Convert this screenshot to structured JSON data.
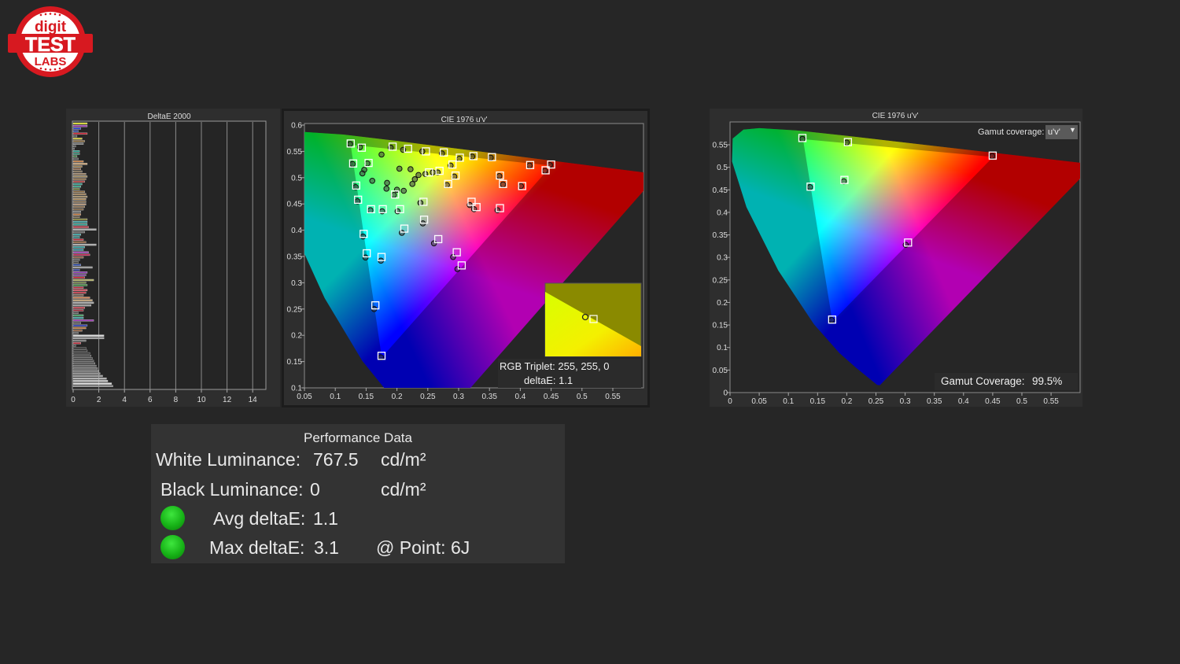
{
  "logo": {
    "line1": "digit",
    "line2": "TEST",
    "line3": "LABS"
  },
  "colors": {
    "background": "#262626",
    "panel": "#2e2e2e",
    "status_good": "#19b419",
    "logo_red": "#d71920"
  },
  "chart_data": [
    {
      "type": "bar",
      "orientation": "horizontal",
      "title": "DeltaE 2000",
      "xlim": [
        0,
        15
      ],
      "xticks": [
        "0",
        "2",
        "4",
        "6",
        "8",
        "10",
        "12",
        "14"
      ],
      "grid": true,
      "values": [
        1.1,
        1.1,
        0.6,
        0.4,
        1.1,
        0.3,
        0.7,
        0.9,
        0.8,
        0.2,
        0.1,
        0.5,
        0.5,
        0.3,
        0.4,
        0.8,
        1.1,
        0.7,
        0.6,
        0.7,
        1.0,
        1.1,
        1.0,
        0.9,
        0.7,
        0.6,
        0.5,
        0.9,
        1.0,
        1.1,
        1.0,
        1.0,
        1.0,
        0.9,
        0.8,
        0.6,
        0.6,
        0.5,
        1.1,
        1.1,
        1.1,
        1.2,
        1.8,
        0.9,
        0.6,
        0.5,
        0.8,
        1.0,
        1.8,
        0.9,
        0.8,
        1.2,
        1.3,
        0.8,
        0.5,
        0.4,
        0.6,
        1.5,
        0.5,
        1.1,
        1.0,
        0.9,
        1.6,
        1.0,
        1.1,
        0.8,
        1.1,
        1.0,
        0.8,
        1.3,
        1.5,
        1.6,
        1.4,
        0.9,
        0.8,
        0.4,
        0.8,
        0.8,
        1.6,
        0.6,
        1.1,
        1.0,
        0.7,
        0.4,
        2.4,
        2.4,
        1.0,
        0.6,
        0.2,
        1.0,
        1.1,
        1.3,
        1.4,
        1.5,
        1.6,
        1.7,
        1.8,
        1.9,
        2.0,
        2.1,
        2.3,
        2.6,
        2.7,
        3.0,
        3.1
      ],
      "bar_colors": [
        "#d8d820",
        "#9a3bb0",
        "#2a3ad0",
        "#2040a0",
        "#c02030",
        "#555",
        "#c8c030",
        "#8a6a3a",
        "#777",
        "#555",
        "#444",
        "#2aa090",
        "#2a8a70",
        "#3a7a3a",
        "#555",
        "#c07a40",
        "#c8a070",
        "#a08050",
        "#8a6040",
        "#7a6a50",
        "#9a8060",
        "#a08a60",
        "#8a6a40",
        "#b04040",
        "#30a090",
        "#30a080",
        "#6a7a30",
        "#8a6a40",
        "#9a7a50",
        "#a08860",
        "#b09060",
        "#8a7050",
        "#b09070",
        "#8a7050",
        "#7a6040",
        "#777",
        "#c07a40",
        "#6a5a40",
        "#7a7a30",
        "#30a0a0",
        "#30a090",
        "#c03040",
        "#aaa",
        "#666",
        "#30a0a0",
        "#2a8a8a",
        "#c03040",
        "#8a5a30",
        "#aaa",
        "#30a0a0",
        "#2a8a9a",
        "#9a3ab0",
        "#c02050",
        "#8a5a40",
        "#555",
        "#444",
        "#2a4ab0",
        "#999",
        "#2a3aa0",
        "#8a3ab0",
        "#7a3aa0",
        "#c02030",
        "#b0b060",
        "#6a7a40",
        "#3a8a3a",
        "#c03040",
        "#d04050",
        "#c03040",
        "#7a6050",
        "#d08050",
        "#c0a070",
        "#aaa",
        "#999",
        "#c03040",
        "#a03040",
        "#555",
        "#3a9a5a",
        "#30a0a0",
        "#9a3ab0",
        "#555",
        "#2a3ab0",
        "#c07a40",
        "#8a5a3a",
        "#555",
        "#ddd",
        "#999",
        "#777",
        "#c03040",
        "#444",
        "#222",
        "#2a2a2a",
        "#333",
        "#3a3a3a",
        "#444",
        "#4a4a4a",
        "#555",
        "#666",
        "#6e6e6e",
        "#7a7a7a",
        "#8a8a8a",
        "#9a9a9a",
        "#b0b0b0",
        "#c8c8c8",
        "#e0e0e0"
      ]
    },
    {
      "type": "scatter",
      "title": "CIE 1976 u'v'",
      "xlim": [
        0.05,
        0.6
      ],
      "ylim": [
        0.1,
        0.6
      ],
      "xticks": [
        "0.05",
        "0.1",
        "0.15",
        "0.2",
        "0.25",
        "0.3",
        "0.35",
        "0.4",
        "0.45",
        "0.5",
        "0.55"
      ],
      "yticks": [
        "0.1",
        "0.15",
        "0.2",
        "0.25",
        "0.3",
        "0.35",
        "0.4",
        "0.45",
        "0.5",
        "0.55",
        "0.6"
      ],
      "reference_gamut": {
        "red": [
          0.4507,
          0.5229
        ],
        "green": [
          0.125,
          0.5625
        ],
        "blue": [
          0.1754,
          0.1579
        ]
      },
      "targets": [
        [
          0.125,
          0.565
        ],
        [
          0.143,
          0.557
        ],
        [
          0.129,
          0.527
        ],
        [
          0.154,
          0.528
        ],
        [
          0.134,
          0.485
        ],
        [
          0.137,
          0.458
        ],
        [
          0.158,
          0.44
        ],
        [
          0.177,
          0.44
        ],
        [
          0.205,
          0.44
        ],
        [
          0.146,
          0.393
        ],
        [
          0.151,
          0.356
        ],
        [
          0.175,
          0.349
        ],
        [
          0.165,
          0.257
        ],
        [
          0.175,
          0.161
        ],
        [
          0.212,
          0.403
        ],
        [
          0.244,
          0.42
        ],
        [
          0.267,
          0.383
        ],
        [
          0.297,
          0.358
        ],
        [
          0.305,
          0.333
        ],
        [
          0.243,
          0.454
        ],
        [
          0.321,
          0.454
        ],
        [
          0.329,
          0.444
        ],
        [
          0.367,
          0.442
        ],
        [
          0.403,
          0.484
        ],
        [
          0.367,
          0.504
        ],
        [
          0.372,
          0.488
        ],
        [
          0.295,
          0.504
        ],
        [
          0.283,
          0.488
        ],
        [
          0.416,
          0.524
        ],
        [
          0.45,
          0.525
        ],
        [
          0.441,
          0.514
        ],
        [
          0.354,
          0.539
        ],
        [
          0.324,
          0.541
        ],
        [
          0.302,
          0.538
        ],
        [
          0.276,
          0.548
        ],
        [
          0.247,
          0.55
        ],
        [
          0.218,
          0.555
        ],
        [
          0.193,
          0.559
        ],
        [
          0.29,
          0.525
        ],
        [
          0.269,
          0.513
        ],
        [
          0.252,
          0.51
        ],
        [
          0.197,
          0.468
        ]
      ],
      "measured": [
        [
          0.124,
          0.564
        ],
        [
          0.14,
          0.558
        ],
        [
          0.128,
          0.526
        ],
        [
          0.152,
          0.527
        ],
        [
          0.133,
          0.482
        ],
        [
          0.136,
          0.455
        ],
        [
          0.157,
          0.438
        ],
        [
          0.176,
          0.436
        ],
        [
          0.201,
          0.436
        ],
        [
          0.145,
          0.388
        ],
        [
          0.149,
          0.348
        ],
        [
          0.174,
          0.342
        ],
        [
          0.163,
          0.25
        ],
        [
          0.174,
          0.158
        ],
        [
          0.208,
          0.395
        ],
        [
          0.242,
          0.413
        ],
        [
          0.26,
          0.375
        ],
        [
          0.291,
          0.349
        ],
        [
          0.298,
          0.326
        ],
        [
          0.238,
          0.452
        ],
        [
          0.318,
          0.448
        ],
        [
          0.325,
          0.44
        ],
        [
          0.363,
          0.438
        ],
        [
          0.401,
          0.484
        ],
        [
          0.366,
          0.503
        ],
        [
          0.372,
          0.487
        ],
        [
          0.293,
          0.502
        ],
        [
          0.281,
          0.486
        ],
        [
          0.415,
          0.523
        ],
        [
          0.448,
          0.524
        ],
        [
          0.44,
          0.513
        ],
        [
          0.352,
          0.538
        ],
        [
          0.322,
          0.54
        ],
        [
          0.301,
          0.536
        ],
        [
          0.273,
          0.546
        ],
        [
          0.241,
          0.55
        ],
        [
          0.21,
          0.553
        ],
        [
          0.19,
          0.557
        ],
        [
          0.287,
          0.523
        ],
        [
          0.266,
          0.51
        ],
        [
          0.246,
          0.507
        ],
        [
          0.195,
          0.467
        ],
        [
          0.147,
          0.515
        ],
        [
          0.144,
          0.508
        ],
        [
          0.16,
          0.494
        ],
        [
          0.175,
          0.544
        ],
        [
          0.204,
          0.517
        ],
        [
          0.222,
          0.516
        ],
        [
          0.229,
          0.497
        ],
        [
          0.225,
          0.488
        ],
        [
          0.184,
          0.49
        ],
        [
          0.183,
          0.479
        ],
        [
          0.2,
          0.477
        ],
        [
          0.211,
          0.475
        ],
        [
          0.235,
          0.505
        ],
        [
          0.258,
          0.51
        ]
      ],
      "inset": {
        "triplet_label": "RGB Triplet: 255, 255, 0",
        "delta_label": "deltaE: 1.1"
      }
    },
    {
      "type": "scatter",
      "title": "CIE 1976 u'v'",
      "xlim": [
        0,
        0.6
      ],
      "ylim": [
        0,
        0.6
      ],
      "xticks": [
        "0",
        "0.05",
        "0.1",
        "0.15",
        "0.2",
        "0.25",
        "0.3",
        "0.35",
        "0.4",
        "0.45",
        "0.5",
        "0.55"
      ],
      "yticks": [
        "0",
        "0.05",
        "0.1",
        "0.15",
        "0.2",
        "0.25",
        "0.3",
        "0.35",
        "0.4",
        "0.45",
        "0.5",
        "0.55"
      ],
      "reference_gamut": {
        "red": [
          0.4507,
          0.5229
        ],
        "green": [
          0.125,
          0.5625
        ],
        "blue": [
          0.1754,
          0.1579
        ]
      },
      "targets": [
        [
          0.124,
          0.565
        ],
        [
          0.202,
          0.556
        ],
        [
          0.45,
          0.526
        ],
        [
          0.138,
          0.457
        ],
        [
          0.196,
          0.472
        ],
        [
          0.305,
          0.333
        ],
        [
          0.175,
          0.162
        ]
      ],
      "measured": [
        [
          0.124,
          0.563
        ],
        [
          0.2,
          0.555
        ],
        [
          0.449,
          0.525
        ],
        [
          0.137,
          0.456
        ],
        [
          0.195,
          0.469
        ],
        [
          0.301,
          0.328
        ],
        [
          0.174,
          0.161
        ]
      ],
      "gamut_selector_label": "Gamut coverage:",
      "gamut_selector_value": "u'v'",
      "coverage_label": "Gamut Coverage:",
      "coverage_value": "99.5%"
    }
  ],
  "performance": {
    "title": "Performance Data",
    "white_label": "White Luminance:",
    "white_value": "767.5",
    "white_unit": "cd/m²",
    "black_label": "Black Luminance:",
    "black_value": "0",
    "black_unit": "cd/m²",
    "avg_label": "Avg deltaE:",
    "avg_value": "1.1",
    "max_label": "Max deltaE:",
    "max_value": "3.1",
    "max_point": "@ Point: 6J"
  }
}
